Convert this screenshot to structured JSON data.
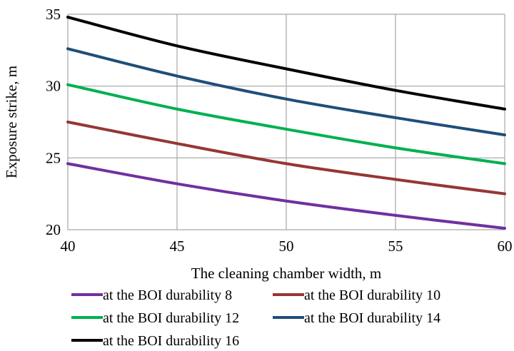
{
  "chart_data": {
    "type": "line",
    "title": "",
    "xlabel": "The cleaning chamber width, m",
    "ylabel": "Exposure strike, m",
    "xlim": [
      40,
      60
    ],
    "ylim": [
      20,
      35
    ],
    "x_ticks": [
      40,
      45,
      50,
      55,
      60
    ],
    "y_ticks": [
      20,
      25,
      30,
      35
    ],
    "grid": true,
    "legend_position": "bottom",
    "x": [
      40,
      45,
      50,
      55,
      60
    ],
    "series": [
      {
        "name": "at the BOI durability 8",
        "color": "#7030a0",
        "values": [
          24.6,
          23.2,
          22.0,
          21.0,
          20.1
        ]
      },
      {
        "name": "at the BOI durability 10",
        "color": "#953735",
        "values": [
          27.5,
          26.0,
          24.6,
          23.5,
          22.5
        ]
      },
      {
        "name": "at the BOI durability 12",
        "color": "#00b050",
        "values": [
          30.1,
          28.4,
          27.0,
          25.7,
          24.6
        ]
      },
      {
        "name": "at the BOI durability 14",
        "color": "#1f4e79",
        "values": [
          32.6,
          30.7,
          29.1,
          27.8,
          26.6
        ]
      },
      {
        "name": "at the BOI durability 16",
        "color": "#000000",
        "values": [
          34.8,
          32.8,
          31.2,
          29.7,
          28.4
        ]
      }
    ]
  }
}
